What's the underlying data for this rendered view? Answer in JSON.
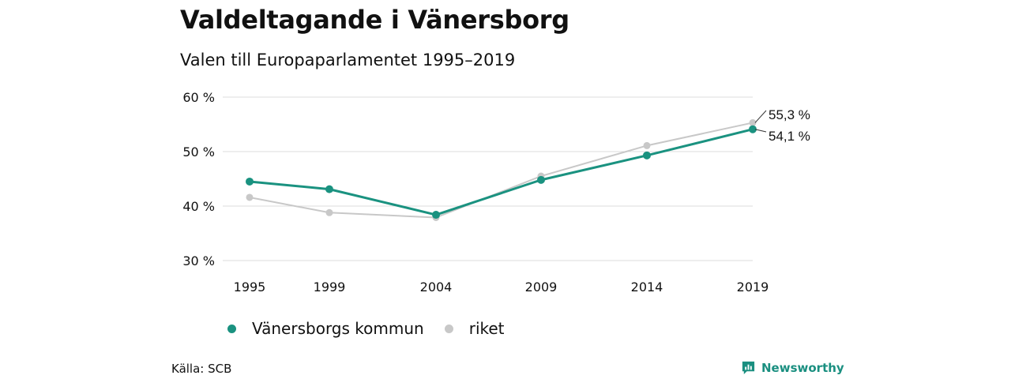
{
  "chart_data": {
    "type": "line",
    "title": "Valdeltagande i Vänersborg",
    "subtitle": "Valen till Europaparlamentet 1995–2019",
    "categories": [
      "1995",
      "1999",
      "2004",
      "2009",
      "2014",
      "2019"
    ],
    "x": [
      1995,
      1999,
      2004,
      2009,
      2014,
      2019
    ],
    "ylim": [
      30,
      60
    ],
    "yticks": [
      30,
      40,
      50,
      60
    ],
    "ytick_labels": [
      "30 %",
      "40 %",
      "50 %",
      "60 %"
    ],
    "grid": true,
    "legend_position": "bottom",
    "series": [
      {
        "name": "riket",
        "values": [
          41.6,
          38.8,
          37.9,
          45.5,
          51.1,
          55.3
        ],
        "color": "#c8c8c8",
        "end_label": "55,3 %"
      },
      {
        "name": "Vänersborgs kommun",
        "values": [
          44.5,
          43.1,
          38.4,
          44.8,
          49.3,
          54.1
        ],
        "color": "#1a9280",
        "end_label": "54,1 %"
      }
    ],
    "source": "Källa: SCB"
  },
  "brand": {
    "name": "Newsworthy",
    "icon": "newsworthy-logo-icon",
    "color": "#1a8f80"
  }
}
